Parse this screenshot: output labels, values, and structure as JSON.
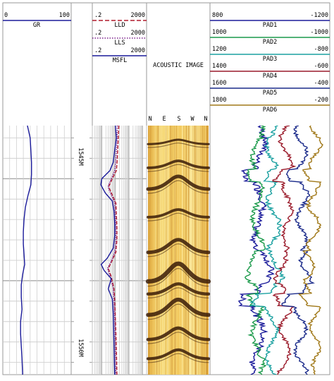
{
  "chart_data": {
    "type": "line",
    "title": "",
    "depth_axis": {
      "unit": "M",
      "labels": [
        {
          "text": "1545M",
          "depth": 1545
        },
        {
          "text": "1550M",
          "depth": 1550
        }
      ],
      "range": [
        1542.4,
        1554.6
      ]
    },
    "tracks": [
      {
        "name": "GR",
        "label": "GR",
        "scale_left": "0",
        "scale_right": "100",
        "range": [
          0,
          100
        ],
        "color": "#1a1a9a",
        "points": [
          [
            1542.4,
            36
          ],
          [
            1543.0,
            40
          ],
          [
            1543.6,
            41
          ],
          [
            1544.2,
            42
          ],
          [
            1544.8,
            42
          ],
          [
            1545.3,
            41
          ],
          [
            1545.8,
            37
          ],
          [
            1546.4,
            33
          ],
          [
            1547.0,
            31
          ],
          [
            1547.6,
            30
          ],
          [
            1548.2,
            30
          ],
          [
            1548.7,
            31
          ],
          [
            1549.2,
            32
          ],
          [
            1549.7,
            29
          ],
          [
            1550.2,
            27
          ],
          [
            1550.8,
            27
          ],
          [
            1551.4,
            28
          ],
          [
            1552.0,
            26
          ],
          [
            1552.6,
            26
          ],
          [
            1553.2,
            27
          ],
          [
            1553.8,
            28
          ],
          [
            1554.6,
            29
          ]
        ]
      },
      {
        "name": "resistivity",
        "scale": "log",
        "curves": [
          {
            "label": "LLD",
            "scale_left": ".2",
            "scale_right": "2000",
            "range": [
              0.2,
              2000
            ],
            "color": "#b0182a",
            "dash": "dashed",
            "points": [
              [
                1542.4,
                18
              ],
              [
                1543.2,
                16
              ],
              [
                1544.0,
                14
              ],
              [
                1544.6,
                12
              ],
              [
                1545.0,
                6
              ],
              [
                1545.4,
                3.2
              ],
              [
                1545.8,
                6
              ],
              [
                1546.2,
                11
              ],
              [
                1546.8,
                12
              ],
              [
                1547.4,
                13
              ],
              [
                1548.0,
                13
              ],
              [
                1548.6,
                11
              ],
              [
                1549.1,
                5
              ],
              [
                1549.4,
                3
              ],
              [
                1549.8,
                5
              ],
              [
                1550.4,
                8
              ],
              [
                1551.0,
                9
              ],
              [
                1551.8,
                10
              ],
              [
                1552.6,
                11
              ],
              [
                1553.4,
                12
              ],
              [
                1554.6,
                13
              ]
            ]
          },
          {
            "label": "LLS",
            "scale_left": ".2",
            "scale_right": "2000",
            "range": [
              0.2,
              2000
            ],
            "color": "#7a1e8a",
            "dash": "dotted",
            "points": [
              [
                1542.4,
                14
              ],
              [
                1543.2,
                13
              ],
              [
                1544.0,
                11
              ],
              [
                1544.6,
                9
              ],
              [
                1545.0,
                5
              ],
              [
                1545.4,
                2.8
              ],
              [
                1545.8,
                5
              ],
              [
                1546.2,
                9
              ],
              [
                1546.8,
                10
              ],
              [
                1547.4,
                11
              ],
              [
                1548.0,
                11
              ],
              [
                1548.6,
                9
              ],
              [
                1549.1,
                4.5
              ],
              [
                1549.4,
                2.6
              ],
              [
                1549.8,
                4.2
              ],
              [
                1550.4,
                7
              ],
              [
                1551.0,
                8
              ],
              [
                1551.8,
                9
              ],
              [
                1552.6,
                9.5
              ],
              [
                1553.4,
                10
              ],
              [
                1554.6,
                11
              ]
            ]
          },
          {
            "label": "MSFL",
            "scale_left": ".2",
            "scale_right": "2000",
            "range": [
              0.2,
              2000
            ],
            "color": "#1a1a9a",
            "dash": "solid",
            "points": [
              [
                1542.4,
                10
              ],
              [
                1543.0,
                12
              ],
              [
                1543.6,
                9
              ],
              [
                1544.2,
                7
              ],
              [
                1544.6,
                4
              ],
              [
                1545.0,
                1.0
              ],
              [
                1545.3,
                0.85
              ],
              [
                1545.7,
                1.8
              ],
              [
                1546.1,
                6
              ],
              [
                1546.6,
                8
              ],
              [
                1547.2,
                9
              ],
              [
                1547.8,
                9
              ],
              [
                1548.4,
                7
              ],
              [
                1548.9,
                2.5
              ],
              [
                1549.2,
                0.9
              ],
              [
                1549.5,
                1.5
              ],
              [
                1549.9,
                5
              ],
              [
                1550.4,
                3
              ],
              [
                1550.9,
                6
              ],
              [
                1551.6,
                7
              ],
              [
                1552.4,
                7.5
              ],
              [
                1553.2,
                8
              ],
              [
                1554.0,
                8.5
              ],
              [
                1554.6,
                9
              ]
            ]
          }
        ]
      },
      {
        "name": "ACOUSTIC IMAGE",
        "label": "ACOUSTIC IMAGE",
        "azimuth_labels": [
          "N",
          "E",
          "S",
          "W",
          "N"
        ]
      },
      {
        "name": "PADS",
        "curves": [
          {
            "label": "PAD1",
            "scale_left": "800",
            "scale_right": "-1200",
            "color": "#1a1a9a",
            "base": 0.42,
            "amp": 0.1
          },
          {
            "label": "PAD2",
            "scale_left": "1000",
            "scale_right": "-1000",
            "color": "#1a9a4a",
            "base": 0.4,
            "amp": 0.07
          },
          {
            "label": "PAD3",
            "scale_left": "1200",
            "scale_right": "-800",
            "color": "#1aa0a0",
            "base": 0.52,
            "amp": 0.07
          },
          {
            "label": "PAD4",
            "scale_left": "1400",
            "scale_right": "-600",
            "color": "#9a1a2a",
            "base": 0.64,
            "amp": 0.06
          },
          {
            "label": "PAD5",
            "scale_left": "1600",
            "scale_right": "-400",
            "color": "#1a2a8a",
            "base": 0.76,
            "amp": 0.05
          },
          {
            "label": "PAD6",
            "scale_left": "1800",
            "scale_right": "-200",
            "color": "#a07818",
            "base": 0.88,
            "amp": 0.05
          }
        ]
      }
    ],
    "grid": true
  }
}
